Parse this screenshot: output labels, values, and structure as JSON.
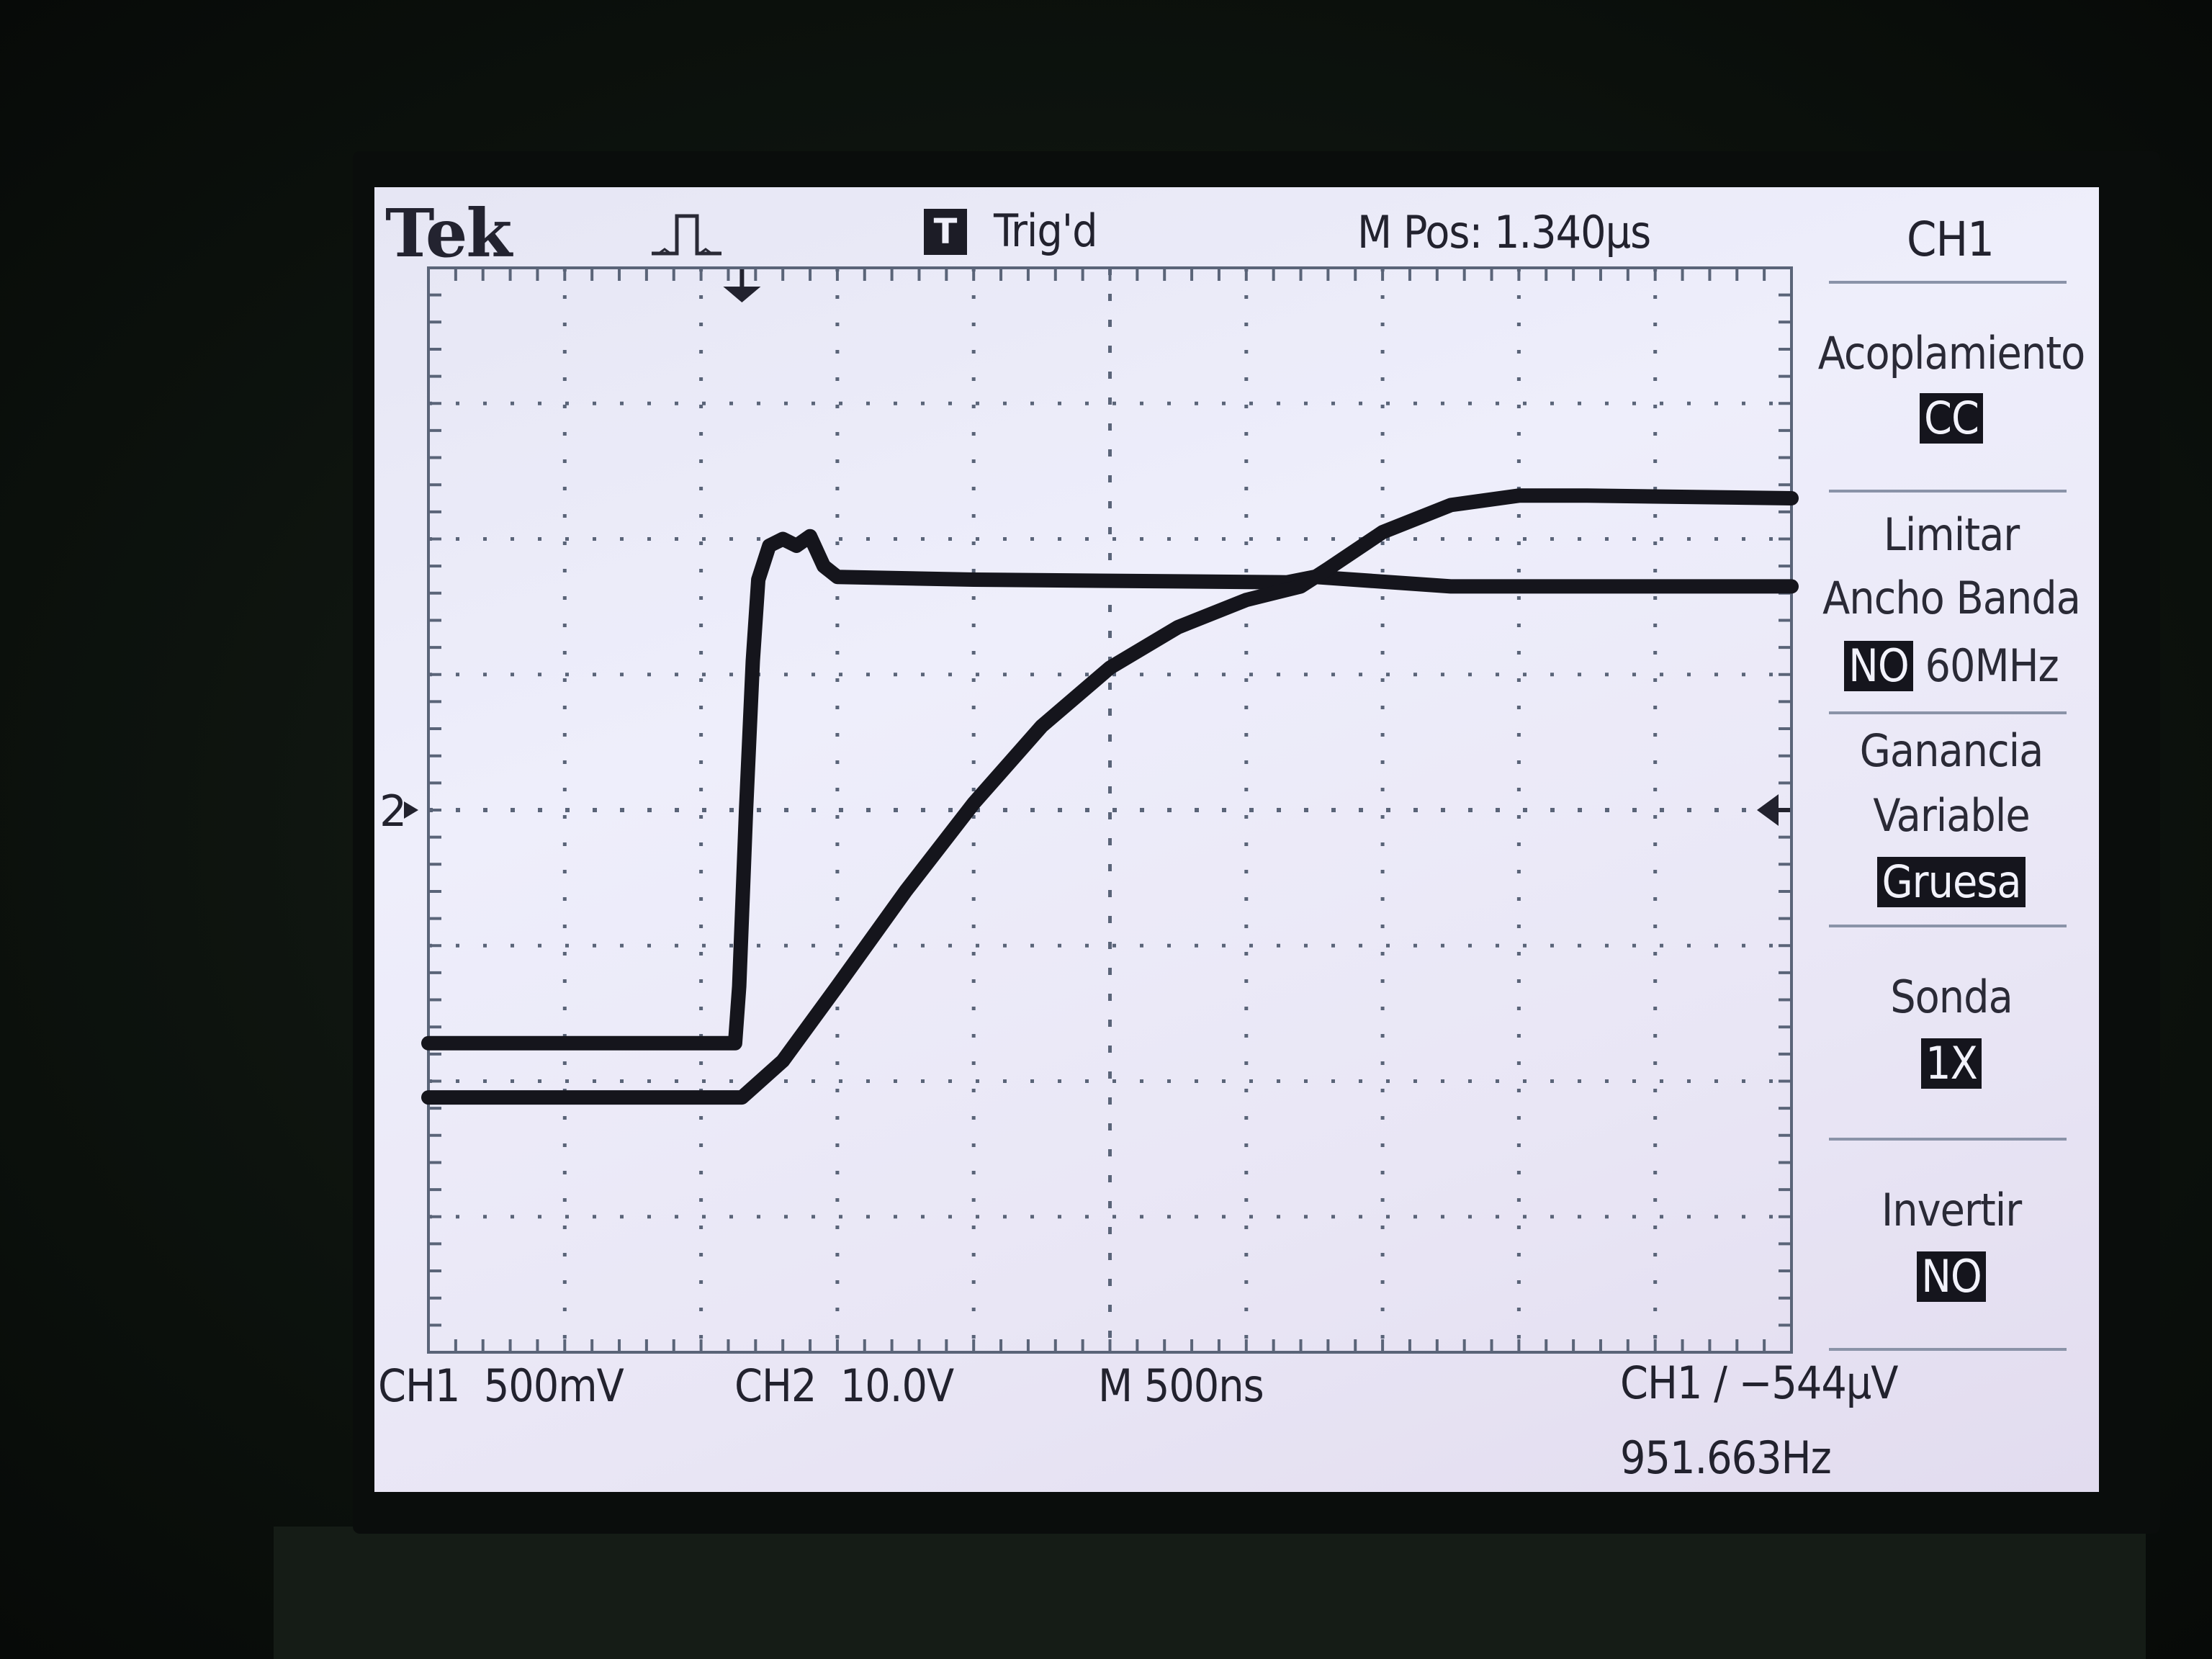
{
  "header": {
    "brand": "Tek",
    "trigger_status": "Trig'd",
    "trigger_icon_letter": "T",
    "position_readout": "M Pos: 1.340µs"
  },
  "menu": {
    "title": "CH1",
    "items": [
      {
        "label_lines": [
          "Acoplamiento"
        ],
        "value": "CC",
        "suffix": ""
      },
      {
        "label_lines": [
          "Limitar",
          "Ancho Banda"
        ],
        "value": "NO",
        "suffix": "60MHz"
      },
      {
        "label_lines": [
          "Ganancia",
          "Variable"
        ],
        "value": "Gruesa",
        "suffix": ""
      },
      {
        "label_lines": [
          "Sonda"
        ],
        "value": "1X",
        "suffix": ""
      },
      {
        "label_lines": [
          "Invertir"
        ],
        "value": "NO",
        "suffix": ""
      }
    ]
  },
  "footer": {
    "ch1_scale": "CH1  500mV",
    "ch2_scale": "CH2  10.0V",
    "time_scale": "M 500ns",
    "trigger_readout": "CH1 ∕ −544µV",
    "frequency": "951.663Hz"
  },
  "markers": {
    "channel_marker": "2",
    "trigger_level_arrow": "left-arrow-icon",
    "trigger_position_arrow": "down-arrow-icon"
  },
  "colors": {
    "screen": "#ececf8",
    "trace": "#15151c",
    "grid": "#5a6478",
    "text": "#22222e"
  },
  "chart_data": {
    "type": "line",
    "grid_on": true,
    "x_divisions": 10,
    "y_divisions": 8,
    "x_unit": "div",
    "y_unit": "div",
    "xlim": [
      0,
      10
    ],
    "ylim": [
      -4,
      4
    ],
    "series": [
      {
        "name": "CH1",
        "points": [
          [
            0,
            -1.72
          ],
          [
            2.25,
            -1.72
          ],
          [
            2.28,
            -1.3
          ],
          [
            2.33,
            0
          ],
          [
            2.38,
            1.1
          ],
          [
            2.42,
            1.7
          ],
          [
            2.5,
            1.95
          ],
          [
            2.6,
            2.0
          ],
          [
            2.7,
            1.95
          ],
          [
            2.8,
            2.02
          ],
          [
            2.9,
            1.8
          ],
          [
            3.0,
            1.72
          ],
          [
            4.0,
            1.7
          ],
          [
            6.3,
            1.68
          ],
          [
            6.5,
            1.72
          ],
          [
            7.5,
            1.65
          ],
          [
            10,
            1.65
          ]
        ]
      },
      {
        "name": "CH2",
        "points": [
          [
            0,
            -2.12
          ],
          [
            2.3,
            -2.12
          ],
          [
            2.6,
            -1.85
          ],
          [
            3.0,
            -1.3
          ],
          [
            3.5,
            -0.6
          ],
          [
            4.0,
            0.05
          ],
          [
            4.5,
            0.62
          ],
          [
            5.0,
            1.05
          ],
          [
            5.5,
            1.35
          ],
          [
            6.0,
            1.55
          ],
          [
            6.4,
            1.65
          ],
          [
            6.6,
            1.78
          ],
          [
            7.0,
            2.05
          ],
          [
            7.5,
            2.25
          ],
          [
            8.0,
            2.32
          ],
          [
            8.5,
            2.32
          ],
          [
            10,
            2.3
          ]
        ]
      }
    ]
  }
}
